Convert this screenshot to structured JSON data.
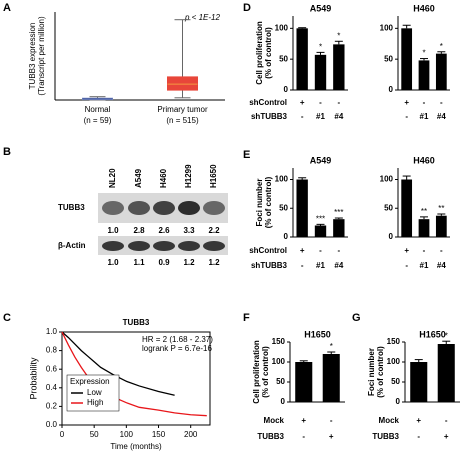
{
  "panel_labels": [
    "A",
    "B",
    "C",
    "D",
    "E",
    "F",
    "G"
  ],
  "blot": {
    "columns": [
      "NL20",
      "A549",
      "H460",
      "H1299",
      "H1650"
    ],
    "rows": [
      {
        "name": "TUBB3",
        "quant": [
          "1.0",
          "2.8",
          "2.6",
          "3.3",
          "2.2"
        ]
      },
      {
        "name": "β-Actin",
        "quant": [
          "1.0",
          "1.1",
          "0.9",
          "1.2",
          "1.2"
        ]
      }
    ]
  },
  "chart_data": [
    {
      "type": "box",
      "ylabel": [
        "TUBB3 expression",
        "(Transcript per million)"
      ],
      "annotation": "p < 1E-12",
      "categories": [
        "Normal",
        "Primary tumor"
      ],
      "category_notes": [
        "(n = 59)",
        "(n = 515)"
      ],
      "ylim": [
        0,
        400
      ],
      "boxes": [
        {
          "min": 0,
          "q1": 2,
          "median": 5,
          "q3": 8,
          "max": 15,
          "color": "#7a8cc0",
          "median_color": "#3a4f9a"
        },
        {
          "min": 10,
          "q1": 45,
          "median": 72,
          "q3": 105,
          "max": 365,
          "color": "#e8463a",
          "median_color": "#f59a42"
        }
      ]
    },
    {
      "type": "line",
      "title": "TUBB3",
      "annotations": [
        "HR = 2 (1.68 - 2.37)",
        "logrank P = 6.7e-16"
      ],
      "xlabel": "Time (months)",
      "ylabel": "Probability",
      "legend_title": "Expression",
      "legend": "lower-left",
      "x": [
        0,
        10,
        20,
        30,
        40,
        50,
        60,
        80,
        100,
        120,
        150,
        175,
        200,
        225
      ],
      "xlim": [
        0,
        230
      ],
      "xticks": [
        0,
        50,
        100,
        150,
        200
      ],
      "ylim": [
        0,
        1
      ],
      "yticks": [
        {
          "value": 0,
          "label": "0.0"
        },
        {
          "value": 0.2,
          "label": "0.2"
        },
        {
          "value": 0.4,
          "label": "0.4"
        },
        {
          "value": 0.6,
          "label": "0.6"
        },
        {
          "value": 0.8,
          "label": "0.8"
        },
        {
          "value": 1,
          "label": "1.0"
        }
      ],
      "series": [
        {
          "name": "Low",
          "color": "#000000",
          "values": [
            1,
            0.94,
            0.87,
            0.8,
            0.74,
            0.68,
            0.62,
            0.54,
            0.47,
            0.42,
            0.36,
            0.32,
            null,
            null
          ]
        },
        {
          "name": "High",
          "color": "#e8161a",
          "values": [
            1,
            0.86,
            0.73,
            0.62,
            0.52,
            0.44,
            0.38,
            0.3,
            0.24,
            0.19,
            0.16,
            0.13,
            0.11,
            0.1
          ]
        }
      ]
    },
    {
      "type": "bar",
      "title": "A549",
      "ylabel": [
        "Cell proliferation",
        "(% of control)"
      ],
      "color": "#000000",
      "ylim": [
        0,
        120
      ],
      "yticks": [
        0,
        50,
        100
      ],
      "values": [
        100,
        57,
        74
      ],
      "errors": [
        1,
        4,
        5
      ],
      "annotations": [
        null,
        "*",
        "*"
      ],
      "condition_names": [
        "shControl",
        "shTUBB3"
      ],
      "condition_marks": [
        [
          "+",
          "-",
          "-"
        ],
        [
          "-",
          "#1",
          "#4"
        ]
      ]
    },
    {
      "type": "bar",
      "title": "H460",
      "color": "#000000",
      "ylim": [
        0,
        120
      ],
      "yticks": [
        0,
        50,
        100
      ],
      "values": [
        100,
        48,
        59
      ],
      "errors": [
        5,
        3,
        3
      ],
      "annotations": [
        null,
        "*",
        "*"
      ],
      "condition_marks": [
        [
          "+",
          "-",
          "-"
        ],
        [
          "-",
          "#1",
          "#4"
        ]
      ]
    },
    {
      "type": "bar",
      "title": "A549",
      "ylabel": [
        "Foci number",
        "(% of control)"
      ],
      "color": "#000000",
      "ylim": [
        0,
        120
      ],
      "yticks": [
        0,
        50,
        100
      ],
      "values": [
        100,
        20,
        31
      ],
      "errors": [
        3,
        2,
        2
      ],
      "annotations": [
        null,
        "***",
        "***"
      ],
      "condition_names": [
        "shControl",
        "shTUBB3"
      ],
      "condition_marks": [
        [
          "+",
          "-",
          "-"
        ],
        [
          "-",
          "#1",
          "#4"
        ]
      ]
    },
    {
      "type": "bar",
      "title": "H460",
      "color": "#000000",
      "ylim": [
        0,
        120
      ],
      "yticks": [
        0,
        50,
        100
      ],
      "values": [
        100,
        31,
        37
      ],
      "errors": [
        6,
        4,
        3
      ],
      "annotations": [
        null,
        "**",
        "**"
      ],
      "condition_marks": [
        [
          "+",
          "-",
          "-"
        ],
        [
          "-",
          "#1",
          "#4"
        ]
      ]
    },
    {
      "type": "bar",
      "title": "H1650",
      "ylabel": [
        "Cell proliferation",
        "(% of control)"
      ],
      "color": "#000000",
      "ylim": [
        0,
        150
      ],
      "yticks": [
        0,
        50,
        100,
        150
      ],
      "values": [
        100,
        120
      ],
      "errors": [
        3,
        5
      ],
      "annotations": [
        null,
        "*"
      ],
      "condition_names": [
        "Mock",
        "TUBB3"
      ],
      "condition_marks": [
        [
          "+",
          "-"
        ],
        [
          "-",
          "+"
        ]
      ]
    },
    {
      "type": "bar",
      "title": "H1650",
      "ylabel": [
        "Foci number",
        "(% of control)"
      ],
      "color": "#000000",
      "ylim": [
        0,
        150
      ],
      "yticks": [
        0,
        50,
        100,
        150
      ],
      "values": [
        100,
        145
      ],
      "errors": [
        6,
        7
      ],
      "annotations": [
        null,
        "*"
      ],
      "condition_names": [
        "Mock",
        "TUBB3"
      ],
      "condition_marks": [
        [
          "+",
          "-"
        ],
        [
          "-",
          "+"
        ]
      ]
    }
  ]
}
